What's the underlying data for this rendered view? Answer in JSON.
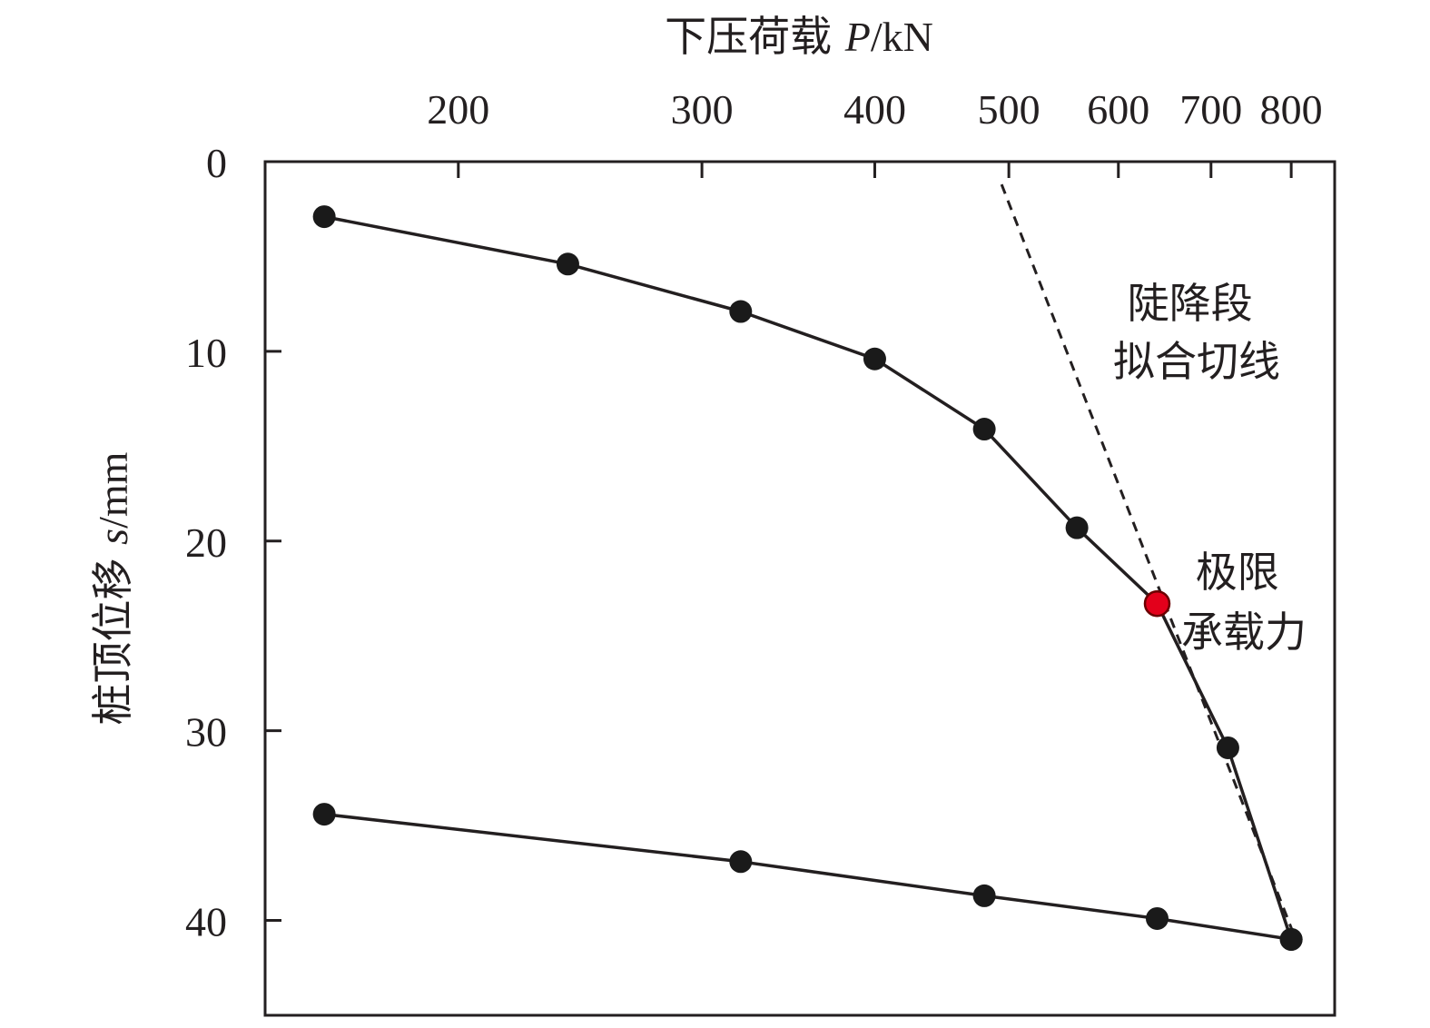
{
  "chart_data": {
    "type": "line",
    "x_axis": {
      "title_main": "下压荷载 ",
      "title_var": "P",
      "title_unit": "/kN",
      "scale": "log",
      "position": "top",
      "range": [
        145,
        860
      ],
      "ticks": [
        200,
        300,
        400,
        500,
        600,
        700,
        800
      ],
      "tick_labels": [
        "200",
        "300",
        "400",
        "500",
        "600",
        "700",
        "800"
      ]
    },
    "y_axis": {
      "title_main": "桩顶位移 ",
      "title_var": "s",
      "title_unit": "/mm",
      "inverted": true,
      "range": [
        0,
        45
      ],
      "ticks": [
        0,
        10,
        20,
        30,
        40
      ],
      "tick_labels": [
        "0",
        "10",
        "20",
        "30",
        "40"
      ]
    },
    "series": [
      {
        "x": [
          160,
          240,
          320,
          400,
          480,
          560,
          640,
          720,
          800
        ],
        "y": [
          2.9,
          5.4,
          7.9,
          10.4,
          14.1,
          19.3,
          23.3,
          30.9,
          41.0
        ]
      },
      {
        "x": [
          800,
          640,
          480,
          320,
          160
        ],
        "y": [
          41.0,
          39.9,
          38.7,
          36.9,
          34.4
        ]
      }
    ],
    "tangent_line": {
      "x": [
        494,
        808
      ],
      "y": [
        1.2,
        41.2
      ],
      "style": "dashed"
    },
    "highlight_point": {
      "x": 640,
      "y": 23.3,
      "color": "#e3001b"
    },
    "annotations": [
      {
        "id": "tangent-label",
        "lines": [
          "陡降段",
          "拟合切线"
        ]
      },
      {
        "id": "ultimate-capacity-label",
        "lines": [
          "极限",
          "承载力"
        ]
      }
    ],
    "grid": false,
    "colors": {
      "line": "#231f20",
      "marker": "#1a1a1a",
      "highlight": "#e3001b",
      "highlight_stroke": "#6b0000"
    }
  }
}
